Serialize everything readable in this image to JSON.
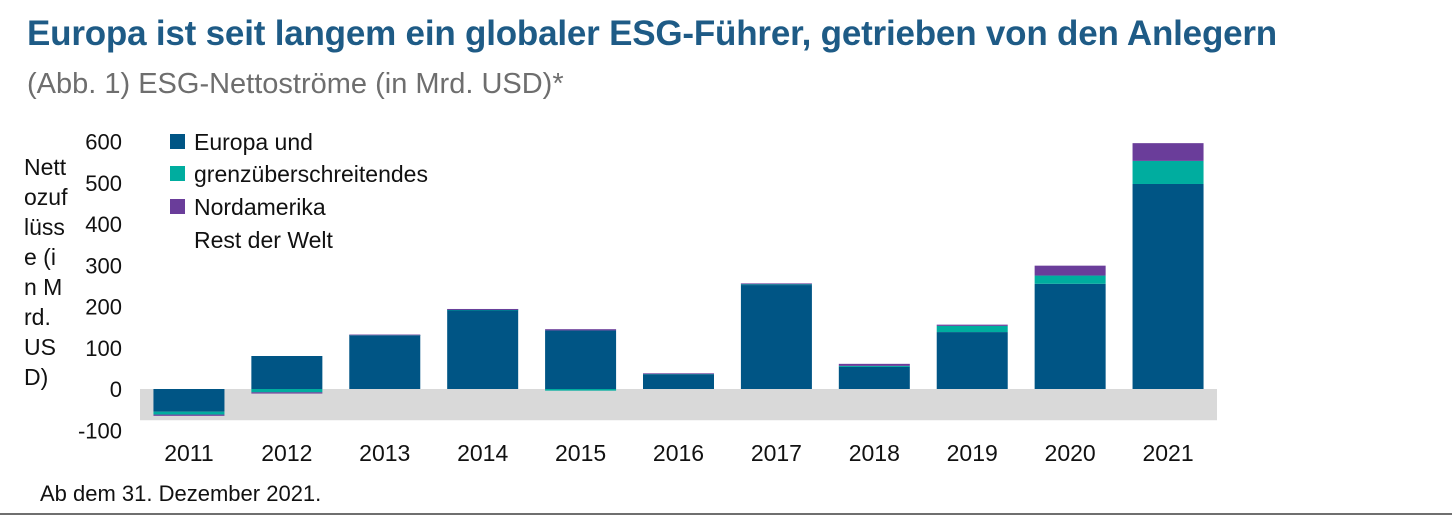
{
  "title": "Europa ist seit langem ein globaler ESG-Führer, getrieben von den Anlegern",
  "subtitle": "(Abb. 1) ESG-Nettoströme (in Mrd. USD)*",
  "footnote": "Ab dem 31. Dezember 2021.",
  "colors": {
    "europa": "#005585",
    "grenz": "#00ad9f",
    "nordamerika": "#6a3d9a",
    "negative_band": "#d9d9d9",
    "title": "#1e5b86"
  },
  "chart_data": {
    "type": "bar",
    "stacked": true,
    "ylabel": "Nettozuflüsse (in Mrd. USD)",
    "ylim": [
      -100,
      600
    ],
    "yticks": [
      -100,
      0,
      100,
      200,
      300,
      400,
      500,
      600
    ],
    "ytick_labels": [
      "-100",
      "0",
      "100",
      "200",
      "300",
      "400",
      "500",
      "600"
    ],
    "categories": [
      "2011",
      "2012",
      "2013",
      "2014",
      "2015",
      "2016",
      "2017",
      "2018",
      "2019",
      "2020",
      "2021"
    ],
    "series": [
      {
        "key": "europa",
        "values": [
          -55,
          80,
          130,
          192,
          142,
          36,
          252,
          54,
          138,
          255,
          497
        ]
      },
      {
        "key": "grenz",
        "values": [
          -7,
          -8,
          1,
          1,
          -4,
          1,
          3,
          2,
          15,
          20,
          56
        ]
      },
      {
        "key": "nordamerika",
        "values": [
          -3,
          -3,
          1,
          1,
          3,
          1,
          1,
          5,
          3,
          24,
          43
        ]
      }
    ],
    "legend_lines": [
      "Europa und",
      "grenzüberschreitendes",
      "Nordamerika",
      "Rest der Welt"
    ],
    "legend_position": "top-left",
    "negative_band": true,
    "grid": false
  }
}
